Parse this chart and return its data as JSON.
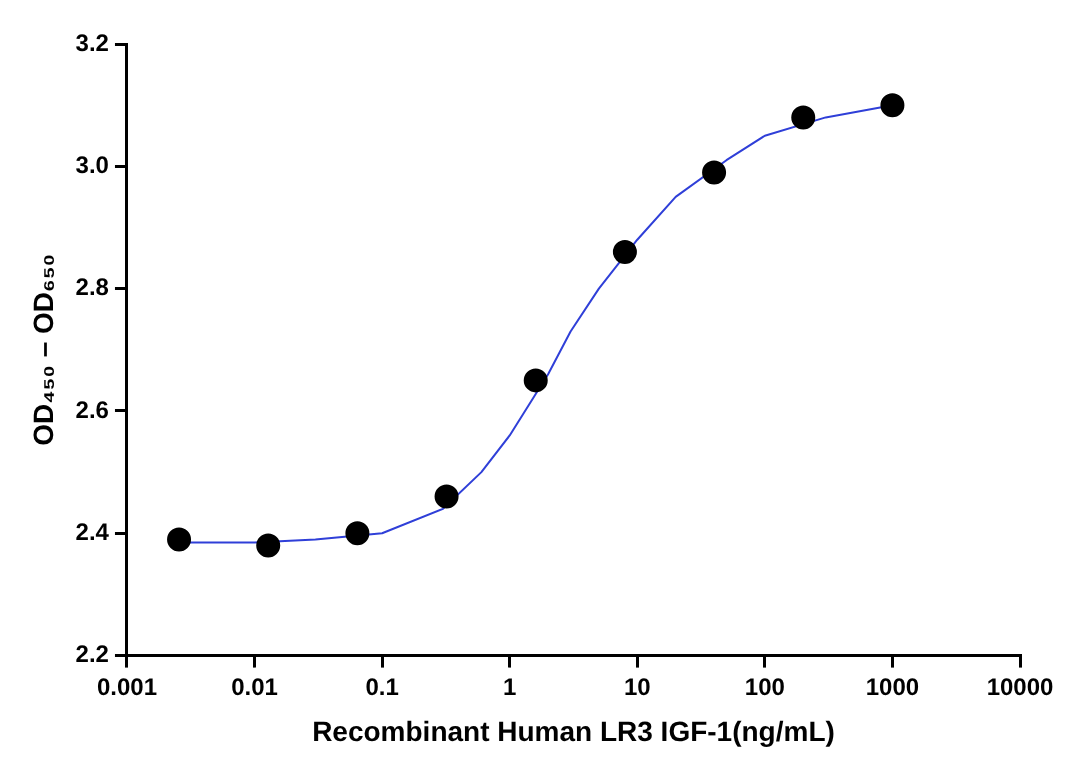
{
  "chart_data": {
    "type": "scatter",
    "xlabel": "Recombinant Human LR3 IGF-1(ng/mL)",
    "ylabel": "OD₄₅₀ – OD₆₅₀",
    "log": "x",
    "grid": false,
    "legend": false,
    "xlim": [
      0.001,
      10000
    ],
    "xticks": [
      0.001,
      0.01,
      0.1,
      1,
      10,
      100,
      1000,
      10000
    ],
    "ylim": [
      2.2,
      3.2
    ],
    "yticks": [
      2.2,
      2.4,
      2.6,
      2.8,
      {
        "value": 3.0,
        "label": "3.0"
      },
      3.2
    ],
    "series": [
      {
        "type": "line",
        "marker": "none",
        "line_style": "solid",
        "color": "#2f3fd8",
        "x": [
          0.00256,
          0.01,
          0.03,
          0.1,
          0.3,
          0.6,
          1,
          2,
          3,
          5,
          10,
          20,
          50,
          100,
          300,
          1000
        ],
        "values": [
          2.385,
          2.385,
          2.39,
          2.4,
          2.44,
          2.5,
          2.56,
          2.66,
          2.73,
          2.8,
          2.88,
          2.95,
          3.01,
          3.05,
          3.08,
          3.1
        ]
      },
      {
        "type": "scatter",
        "marker": "circle",
        "color": "#000000",
        "x": [
          0.00256,
          0.0128,
          0.064,
          0.32,
          1.6,
          8,
          40,
          200,
          1000
        ],
        "values": [
          2.39,
          2.38,
          2.4,
          2.46,
          2.65,
          2.86,
          2.99,
          3.08,
          3.1
        ]
      }
    ]
  }
}
